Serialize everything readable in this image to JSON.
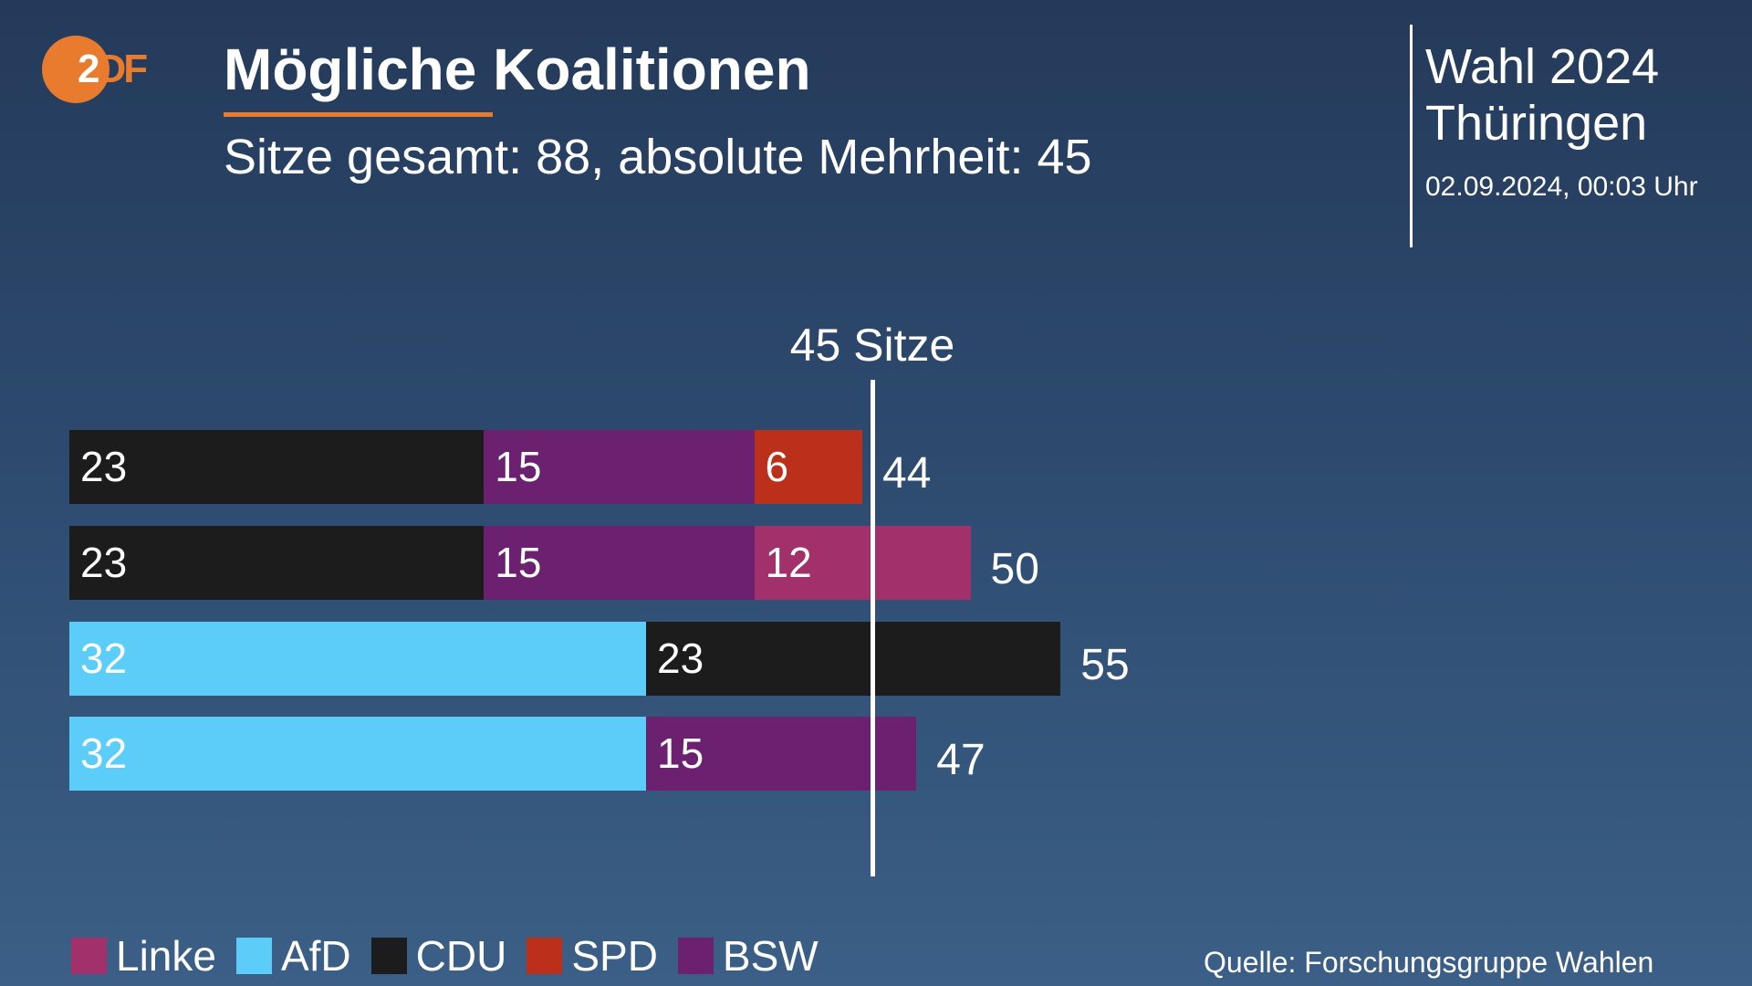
{
  "logo": {
    "text_z": "2",
    "text_df": "DF",
    "brand": "ZDF"
  },
  "header": {
    "title": "Mögliche Koalitionen",
    "subtitle": "Sitze gesamt: 88, absolute Mehrheit: 45",
    "election": "Wahl 2024",
    "region": "Thüringen",
    "timestamp": "02.09.2024, 00:03 Uhr"
  },
  "colors": {
    "Linke": "#a2306a",
    "AfD": "#5bcdf8",
    "CDU": "#1c1c1c",
    "SPD": "#bc2f1a",
    "BSW": "#6b2170",
    "accent": "#e87b2e"
  },
  "chart_data": {
    "type": "bar",
    "orientation": "horizontal",
    "stacked": true,
    "threshold": {
      "value": 45,
      "label": "45 Sitze"
    },
    "rows": [
      {
        "segments": [
          {
            "party": "CDU",
            "value": 23
          },
          {
            "party": "BSW",
            "value": 15
          },
          {
            "party": "SPD",
            "value": 6
          }
        ],
        "total": 44
      },
      {
        "segments": [
          {
            "party": "CDU",
            "value": 23
          },
          {
            "party": "BSW",
            "value": 15
          },
          {
            "party": "Linke",
            "value": 12
          }
        ],
        "total": 50
      },
      {
        "segments": [
          {
            "party": "AfD",
            "value": 32
          },
          {
            "party": "CDU",
            "value": 23
          }
        ],
        "total": 55
      },
      {
        "segments": [
          {
            "party": "AfD",
            "value": 32
          },
          {
            "party": "BSW",
            "value": 15
          }
        ],
        "total": 47
      }
    ],
    "legend": [
      "Linke",
      "AfD",
      "CDU",
      "SPD",
      "BSW"
    ],
    "legend_position": "bottom-left"
  },
  "footer": {
    "source": "Quelle: Forschungsgruppe Wahlen"
  }
}
